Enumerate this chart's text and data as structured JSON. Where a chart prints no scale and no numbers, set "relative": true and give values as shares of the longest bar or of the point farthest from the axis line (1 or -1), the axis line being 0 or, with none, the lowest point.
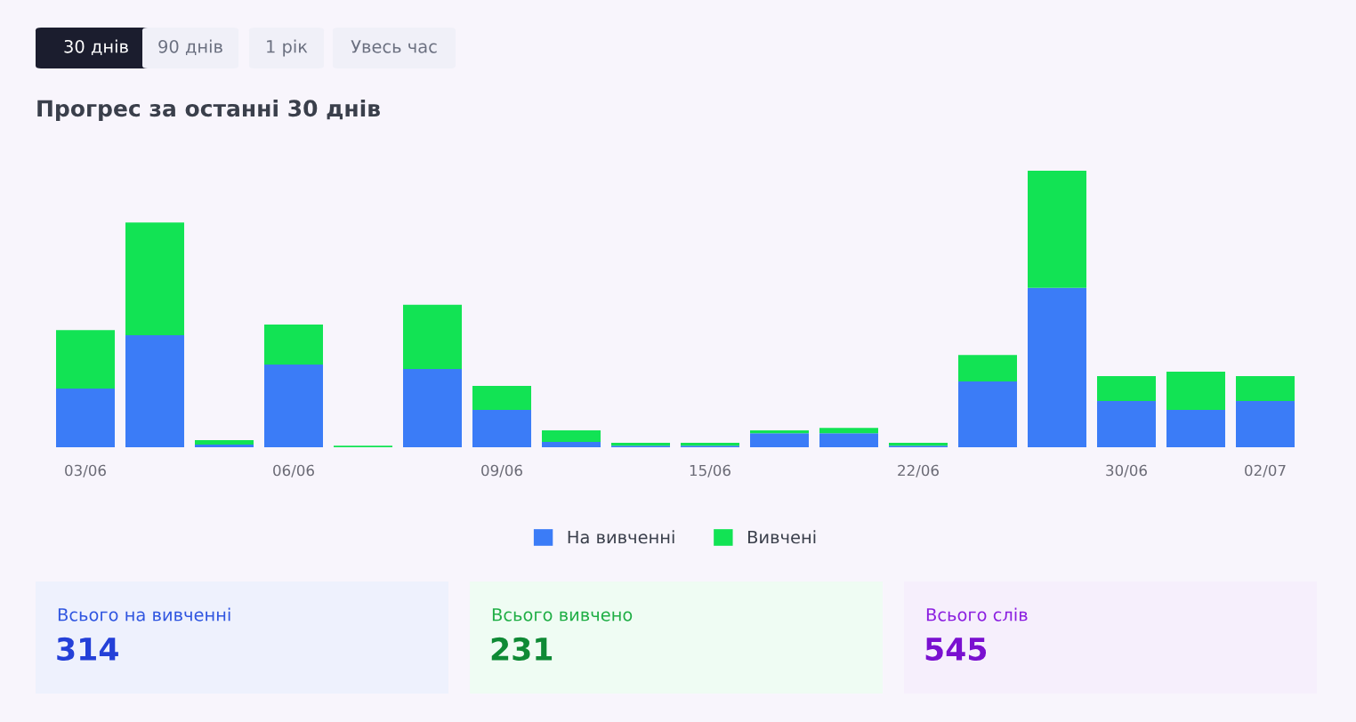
{
  "chart_data": {
    "type": "bar",
    "stacked": true,
    "relative": true,
    "title": "Прогрес за останні 30 днів",
    "categories": [
      "03/06",
      null,
      null,
      "06/06",
      null,
      null,
      "09/06",
      null,
      null,
      "15/06",
      null,
      null,
      "22/06",
      null,
      null,
      "30/06",
      null,
      "02/07"
    ],
    "series": [
      {
        "name": "На вивченні",
        "color": "#3b7cf7",
        "values": [
          0.212,
          0.405,
          0.01,
          0.299,
          0,
          0.283,
          0.135,
          0.019,
          0.006,
          0.006,
          0.051,
          0.051,
          0.006,
          0.238,
          0.576,
          0.167,
          0.135,
          0.167
        ]
      },
      {
        "name": "Вивчені",
        "color": "#12e354",
        "values": [
          0.212,
          0.408,
          0.016,
          0.145,
          0.006,
          0.232,
          0.087,
          0.042,
          0.01,
          0.01,
          0.01,
          0.019,
          0.01,
          0.096,
          0.424,
          0.09,
          0.138,
          0.09
        ]
      }
    ],
    "legend": "bottom",
    "grid": false,
    "annotations": [
      "30 днів",
      "90 днів",
      "1 рік",
      "Увесь час",
      "Всього на вивченні",
      "314",
      "Всього вивчено",
      "231",
      "Всього слів",
      "545"
    ]
  }
}
